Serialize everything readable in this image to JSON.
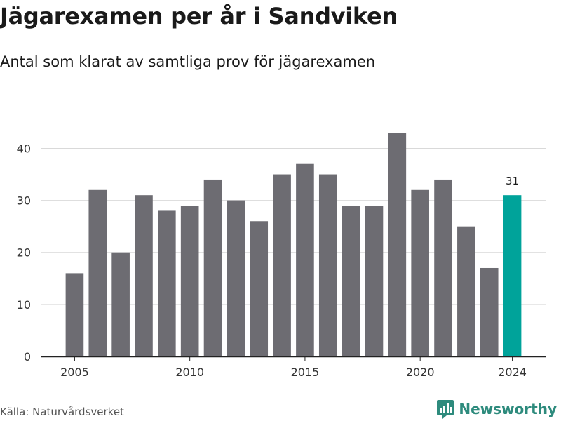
{
  "header": {
    "title": "Jägarexamen per år i Sandviken",
    "subtitle": "Antal som klarat av samtliga prov för jägarexamen"
  },
  "footer": {
    "source": "Källa: Naturvårdsverket",
    "brand": "Newsworthy"
  },
  "colors": {
    "bar": "#6d6c72",
    "highlight": "#00a39a",
    "grid": "#d9d9d9",
    "brand": "#2e8b7d"
  },
  "chart_data": {
    "type": "bar",
    "categories": [
      "2005",
      "2006",
      "2007",
      "2008",
      "2009",
      "2010",
      "2011",
      "2012",
      "2013",
      "2014",
      "2015",
      "2016",
      "2017",
      "2018",
      "2019",
      "2020",
      "2021",
      "2022",
      "2023",
      "2024"
    ],
    "values": [
      16,
      32,
      20,
      31,
      28,
      29,
      34,
      30,
      26,
      35,
      37,
      35,
      29,
      29,
      43,
      32,
      34,
      25,
      17,
      31
    ],
    "highlight_category": "2024",
    "highlight_label": "31",
    "x_tick_labels": [
      "2005",
      "2010",
      "2015",
      "2020",
      "2024"
    ],
    "y_ticks": [
      0,
      10,
      20,
      30,
      40
    ],
    "ylim": [
      0,
      46
    ],
    "grid": true,
    "title": "Jägarexamen per år i Sandviken",
    "subtitle": "Antal som klarat av samtliga prov för jägarexamen",
    "xlabel": "",
    "ylabel": ""
  }
}
